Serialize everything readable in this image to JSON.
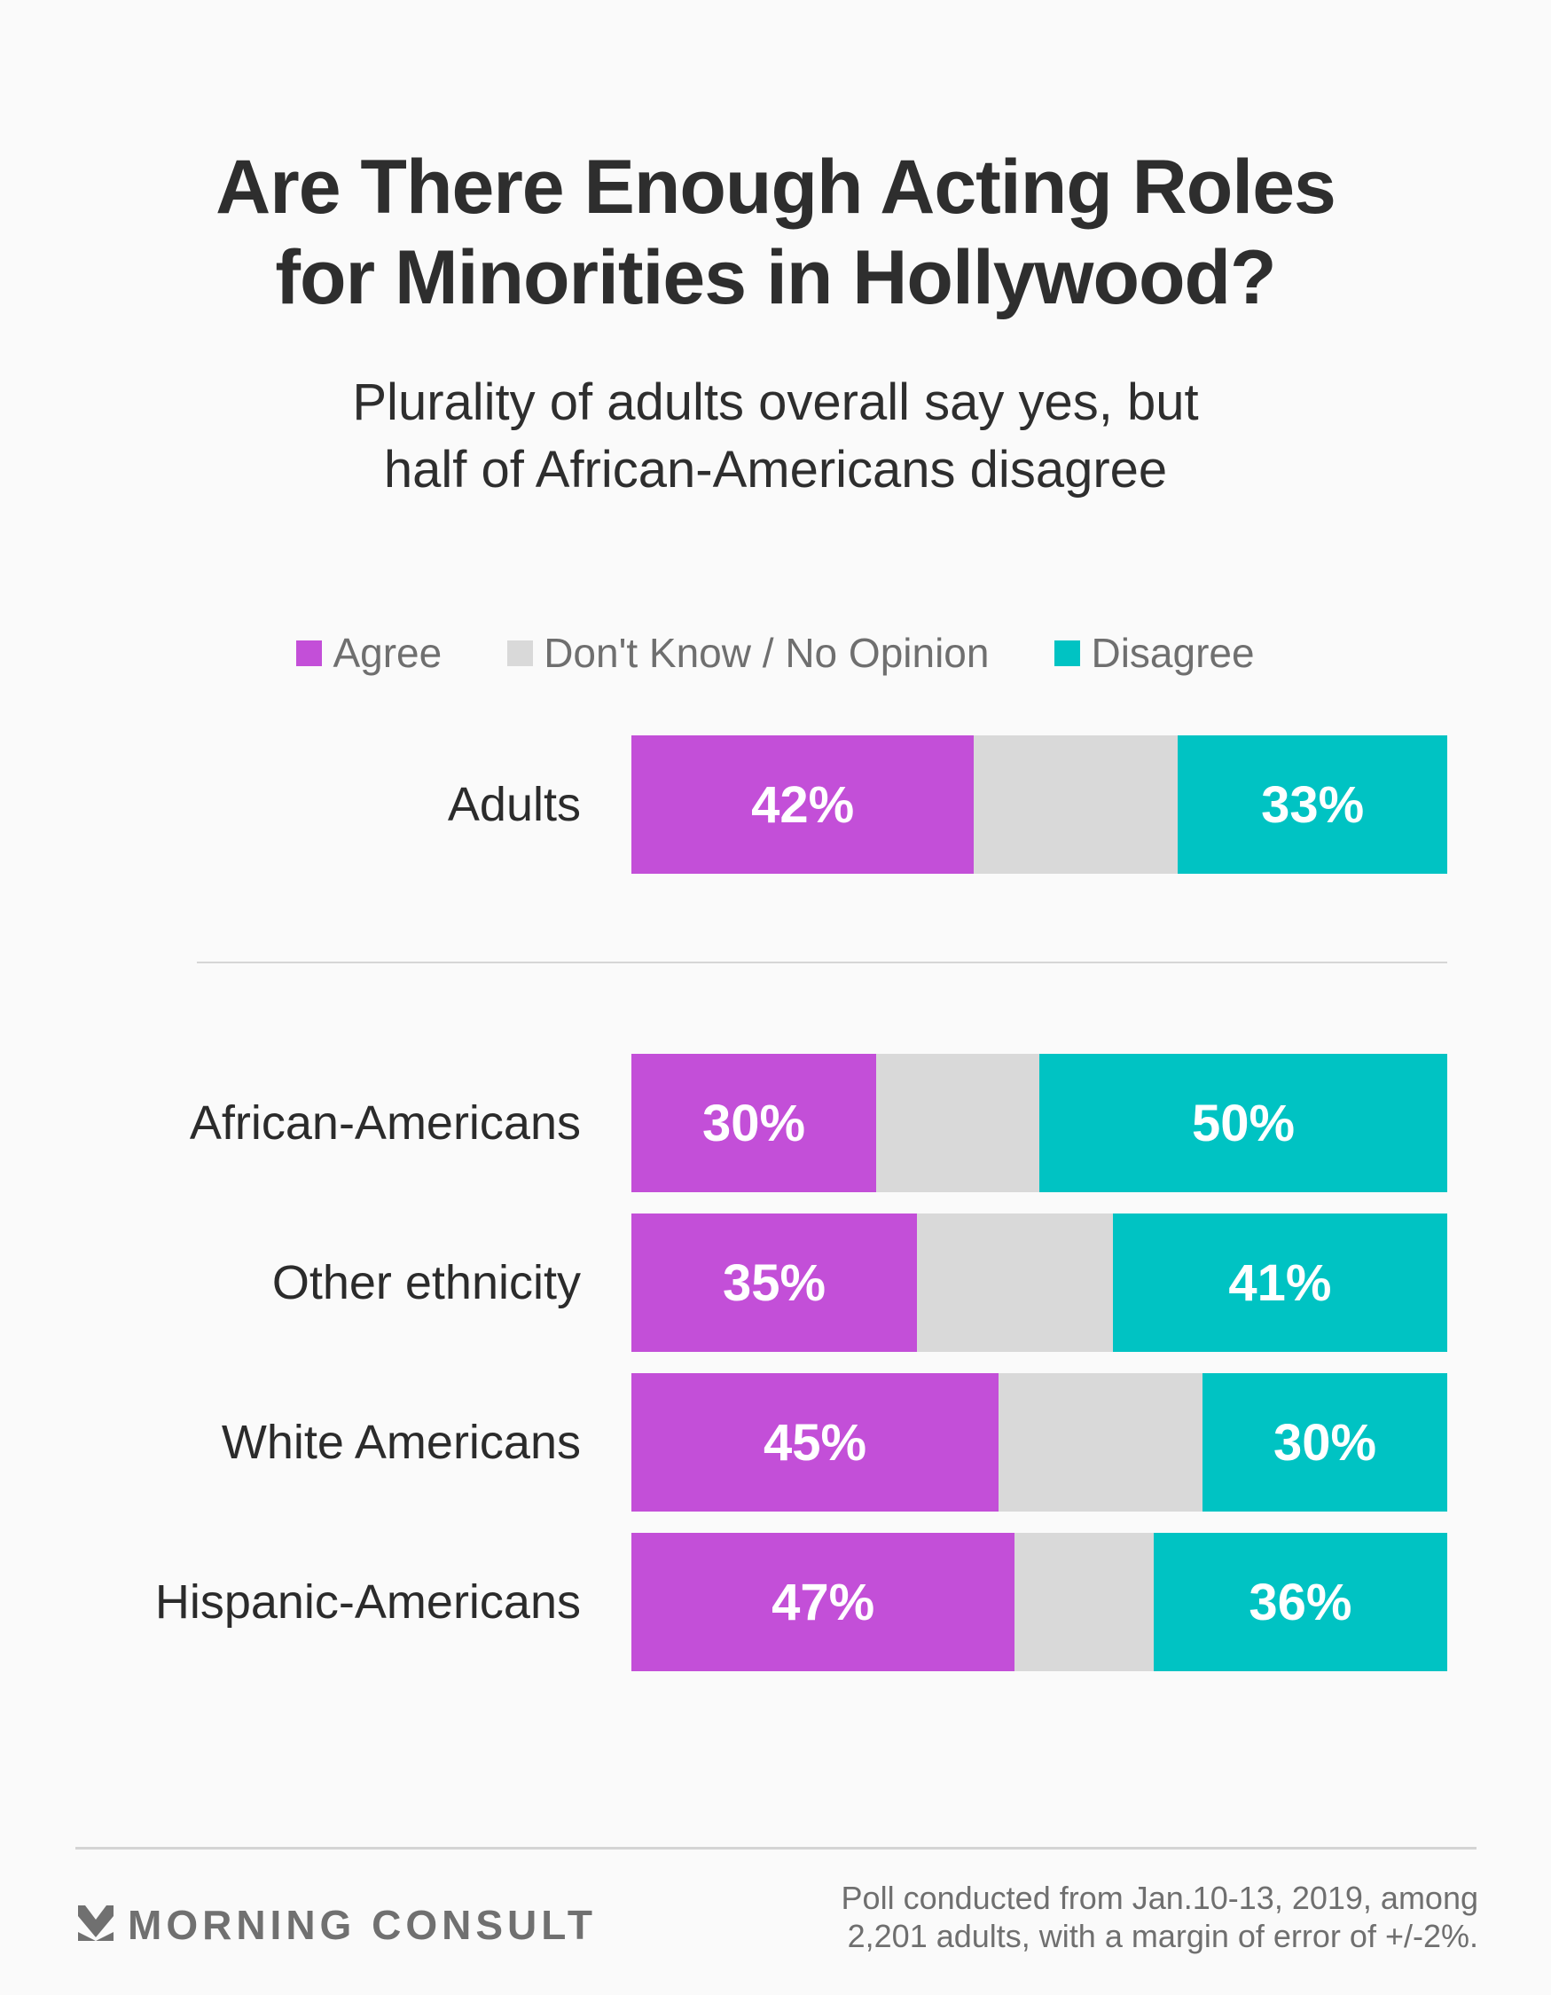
{
  "header": {
    "title_line1": "Are There Enough Acting Roles",
    "title_line2": "for Minorities in Hollywood?",
    "subtitle_line1": "Plurality of adults overall say yes, but",
    "subtitle_line2": "half of African-Americans disagree"
  },
  "legend": [
    {
      "label": "Agree",
      "color": "#c34fd8"
    },
    {
      "label": "Don't Know / No Opinion",
      "color": "#d9d9d9"
    },
    {
      "label": "Disagree",
      "color": "#00c3c3"
    }
  ],
  "chart_data": {
    "type": "bar",
    "orientation": "horizontal",
    "stacked": true,
    "title": "Are There Enough Acting Roles for Minorities in Hollywood?",
    "subtitle": "Plurality of adults overall say yes, but half of African-Americans disagree",
    "categories": [
      "Adults",
      "African-Americans",
      "Other ethnicity",
      "White Americans",
      "Hispanic-Americans"
    ],
    "series": [
      {
        "name": "Agree",
        "values": [
          42,
          30,
          35,
          45,
          47
        ],
        "color": "#c34fd8",
        "labels": [
          "42%",
          "30%",
          "35%",
          "45%",
          "47%"
        ]
      },
      {
        "name": "Don't Know / No Opinion",
        "values": [
          25,
          20,
          24,
          25,
          17
        ],
        "color": "#d9d9d9",
        "labels": [
          "",
          "",
          "",
          "",
          ""
        ]
      },
      {
        "name": "Disagree",
        "values": [
          33,
          50,
          41,
          30,
          36
        ],
        "color": "#00c3c3",
        "labels": [
          "33%",
          "50%",
          "41%",
          "30%",
          "36%"
        ]
      }
    ],
    "xlim": [
      0,
      100
    ],
    "xlabel": "",
    "ylabel": "",
    "grid": false,
    "legend_position": "top-center",
    "group_divider_after": "Adults"
  },
  "footer": {
    "brand": "MORNING CONSULT",
    "logo_icon": "morning-consult-chevron-icon",
    "note_line1": "Poll conducted from Jan.10-13, 2019, among",
    "note_line2": "2,201 adults, with a margin of error of +/-2%."
  }
}
